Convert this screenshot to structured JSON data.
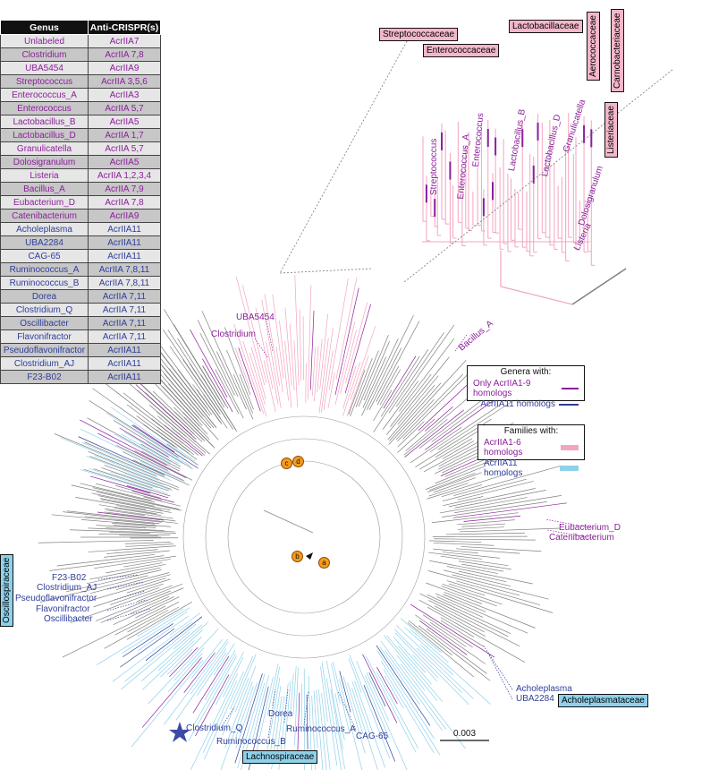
{
  "table": {
    "header": {
      "genus": "Genus",
      "anti": "Anti-CRISPR(s)"
    },
    "rows": [
      {
        "genus": "Unlabeled",
        "acr": "AcrIIA7",
        "color": "purple"
      },
      {
        "genus": "Clostridium",
        "acr": "AcrIIA 7,8",
        "color": "purple"
      },
      {
        "genus": "UBA5454",
        "acr": "AcrIIA9",
        "color": "purple"
      },
      {
        "genus": "Streptococcus",
        "acr": "AcrIIA 3,5,6",
        "color": "purple"
      },
      {
        "genus": "Enterococcus_A",
        "acr": "AcrIIA3",
        "color": "purple"
      },
      {
        "genus": "Enterococcus",
        "acr": "AcrIIA 5,7",
        "color": "purple"
      },
      {
        "genus": "Lactobacillus_B",
        "acr": "AcrIIA5",
        "color": "purple"
      },
      {
        "genus": "Lactobacillus_D",
        "acr": "AcrIIA 1,7",
        "color": "purple"
      },
      {
        "genus": "Granulicatella",
        "acr": "AcrIIA 5,7",
        "color": "purple"
      },
      {
        "genus": "Dolosigranulum",
        "acr": "AcrIIA5",
        "color": "purple"
      },
      {
        "genus": "Listeria",
        "acr": "AcrIIA 1,2,3,4",
        "color": "purple"
      },
      {
        "genus": "Bacillus_A",
        "acr": "AcrIIA 7,9",
        "color": "purple"
      },
      {
        "genus": "Eubacterium_D",
        "acr": "AcrIIA 7,8",
        "color": "purple"
      },
      {
        "genus": "Catenibacterium",
        "acr": "AcrIIA9",
        "color": "purple"
      },
      {
        "genus": "Acholeplasma",
        "acr": "AcrIIA11",
        "color": "blue"
      },
      {
        "genus": "UBA2284",
        "acr": "AcrIIA11",
        "color": "blue"
      },
      {
        "genus": "CAG-65",
        "acr": "AcrIIA11",
        "color": "blue"
      },
      {
        "genus": "Ruminococcus_A",
        "acr": "AcrIIA 7,8,11",
        "color": "blue"
      },
      {
        "genus": "Ruminococcus_B",
        "acr": "AcrIIA 7,8,11",
        "color": "blue"
      },
      {
        "genus": "Dorea",
        "acr": "AcrIIA 7,11",
        "color": "blue"
      },
      {
        "genus": "Clostridium_Q",
        "acr": "AcrIIA 7,11",
        "color": "blue"
      },
      {
        "genus": "Oscillibacter",
        "acr": "AcrIIA 7,11",
        "color": "blue"
      },
      {
        "genus": "Flavonifractor",
        "acr": "AcrIIA 7,11",
        "color": "blue"
      },
      {
        "genus": "Pseudoflavonifractor",
        "acr": "AcrIIA11",
        "color": "blue"
      },
      {
        "genus": "Clostridium_AJ",
        "acr": "AcrIIA11",
        "color": "blue"
      },
      {
        "genus": "F23-B02",
        "acr": "AcrIIA11",
        "color": "blue"
      }
    ]
  },
  "families": {
    "streptococcaceae": "Streptococcaceae",
    "enterococcaceae": "Enterococcaceae",
    "lactobacillaceae": "Lactobacillaceae",
    "aerococcaceae": "Aerococcaceae",
    "carnobacteriaceae": "Carnobacteriaceae",
    "listeriaceae": "Listeriaceae",
    "oscillospiraceae": "Oscillospiraceae",
    "lachnospiraceae": "Lachnospiraceae",
    "acholeplasmataceae": "Acholeplasmataceae"
  },
  "tree_labels": {
    "uba5454": "UBA5454",
    "clostridium": "Clostridium",
    "bacillus_a": "Bacillus_A",
    "eubacterium_d": "Eubacterium_D",
    "catenibacterium": "Catenibacterium",
    "f23b02": "F23-B02",
    "clostridium_aj": "Clostridium_AJ",
    "pseudoflavonifractor": "Pseudoflavonifractor",
    "flavonifractor": "Flavonifractor",
    "oscillibacter": "Oscillibacter",
    "acholeplasma": "Acholeplasma",
    "uba2284": "UBA2284",
    "clostridium_q": "Clostridium_Q",
    "ruminococcus_b": "Ruminococcus_B",
    "dorea": "Dorea",
    "ruminococcus_a": "Ruminococcus_A",
    "cag65": "CAG-65"
  },
  "inset_labels": {
    "streptococcus": "Streptococcus",
    "enterococcus_a": "Enterococcus_A",
    "enterococcus": "Enterococcus",
    "lactobacillus_b": "Lactobacillus_B",
    "lactobacillus_d": "Lactobacillus_D",
    "granulicatella": "Granulicatella",
    "dolosigranulum": "Dolosigranulum",
    "listeria": "Listeria"
  },
  "nodes": {
    "a": "a",
    "b": "b",
    "c": "c",
    "d": "d"
  },
  "legend_genera": {
    "title": "Genera with:",
    "purple": "Only AcrIIA1-9 homologs",
    "blue": "AcrIIA11 homologs"
  },
  "legend_families": {
    "title": "Families with:",
    "pink": "AcrIIA1-6 homologs",
    "lightblue": "AcrIIA11 homologs"
  },
  "scale_bar": "0.003",
  "colors": {
    "purple": "#8b1f9a",
    "blue": "#2f3e9a",
    "pink": "#f3a5c0",
    "lightblue": "#8fd1ea",
    "grey": "#808080",
    "node": "#f59a1e",
    "star": "#3b4aa6"
  }
}
